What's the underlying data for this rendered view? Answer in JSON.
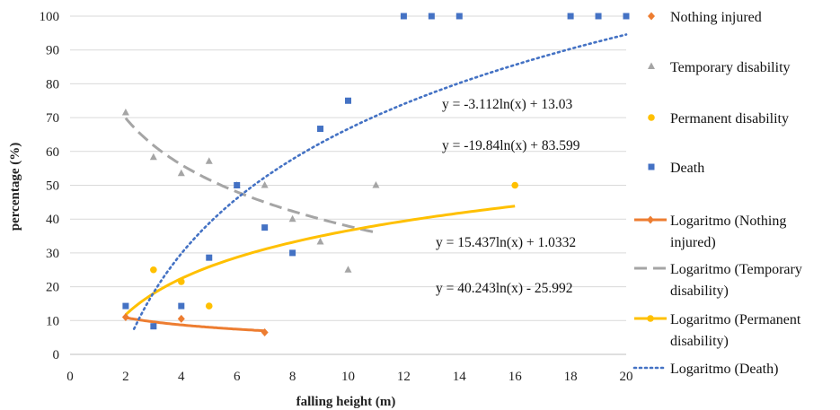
{
  "chart_data": {
    "type": "scatter",
    "xlabel": "falling height (m)",
    "ylabel": "percentage (%)",
    "xlim": [
      0,
      20
    ],
    "ylim": [
      0,
      100
    ],
    "xticks": [
      0,
      2,
      4,
      6,
      8,
      10,
      12,
      14,
      16,
      18,
      20
    ],
    "yticks": [
      0,
      10,
      20,
      30,
      40,
      50,
      60,
      70,
      80,
      90,
      100
    ],
    "grid": "horizontal",
    "legend_position": "right",
    "series": [
      {
        "name": "Nothing injured",
        "marker": "diamond",
        "color": "#ED7D31",
        "points": [
          [
            2,
            11
          ],
          [
            4,
            10.5
          ],
          [
            7,
            6.5
          ]
        ]
      },
      {
        "name": "Temporary disability",
        "marker": "triangle",
        "color": "#A5A5A5",
        "points": [
          [
            2,
            71.5
          ],
          [
            3,
            58.3
          ],
          [
            4,
            53.5
          ],
          [
            5,
            57.1
          ],
          [
            6,
            50
          ],
          [
            7,
            50
          ],
          [
            8,
            40
          ],
          [
            9,
            33.3
          ],
          [
            10,
            25
          ],
          [
            11,
            50
          ]
        ]
      },
      {
        "name": "Permanent disability",
        "marker": "circle",
        "color": "#FFC000",
        "points": [
          [
            3,
            25
          ],
          [
            4,
            21.5
          ],
          [
            5,
            14.3
          ],
          [
            16,
            50
          ]
        ]
      },
      {
        "name": "Death",
        "marker": "square",
        "color": "#4472C4",
        "points": [
          [
            2,
            14.3
          ],
          [
            3,
            8.3
          ],
          [
            4,
            14.3
          ],
          [
            5,
            28.6
          ],
          [
            6,
            50
          ],
          [
            7,
            37.5
          ],
          [
            8,
            30
          ],
          [
            9,
            66.7
          ],
          [
            10,
            75
          ],
          [
            12,
            100
          ],
          [
            13,
            100
          ],
          [
            14,
            100
          ],
          [
            18,
            100
          ],
          [
            19,
            100
          ],
          [
            20,
            100
          ]
        ]
      }
    ],
    "trendlines": [
      {
        "name": "Logaritmo (Nothing injured)",
        "color": "#ED7D31",
        "style": "solid",
        "a": -3.112,
        "b": 13.03,
        "x_range": [
          2,
          7
        ]
      },
      {
        "name": "Logaritmo (Temporary disability)",
        "color": "#A5A5A5",
        "style": "dashed",
        "a": -19.84,
        "b": 83.599,
        "x_range": [
          2,
          11
        ]
      },
      {
        "name": "Logaritmo (Permanent disability)",
        "color": "#FFC000",
        "style": "solid",
        "a": 15.437,
        "b": 1.0332,
        "x_range": [
          2,
          16
        ]
      },
      {
        "name": "Logaritmo (Death)",
        "color": "#4472C4",
        "style": "dotted",
        "a": 40.243,
        "b": -25.992,
        "x_range": [
          2.3,
          20
        ]
      }
    ],
    "annotations": [
      "y = -3.112ln(x) + 13.03",
      "y = -19.84ln(x) + 83.599",
      "y = 15.437ln(x) + 1.0332",
      "y = 40.243ln(x) - 25.992"
    ],
    "legend": [
      [
        "Nothing injured"
      ],
      [
        "Temporary disability"
      ],
      [
        "Permanent disability"
      ],
      [
        "Death"
      ],
      [
        "Logaritmo (Nothing",
        "injured)"
      ],
      [
        "Logaritmo (Temporary",
        "disability)"
      ],
      [
        "Logaritmo (Permanent",
        "disability)"
      ],
      [
        "Logaritmo (Death)"
      ]
    ]
  }
}
